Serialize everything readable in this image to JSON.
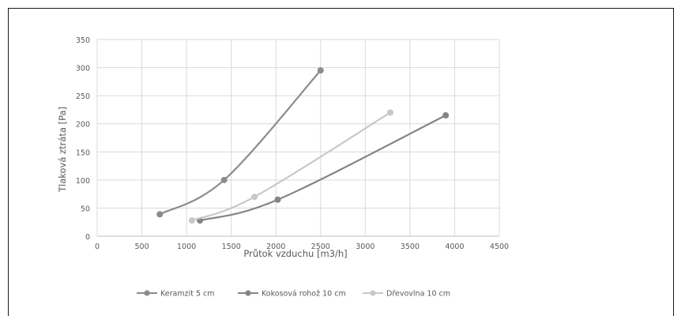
{
  "chart_data": {
    "type": "line",
    "title": "",
    "xlabel": "Průtok vzduchu [m3/h]",
    "ylabel": "Tlaková ztráta [Pa]",
    "xlim": [
      0,
      4500
    ],
    "ylim": [
      0,
      350
    ],
    "xticks": [
      0,
      500,
      1000,
      1500,
      2000,
      2500,
      3000,
      3500,
      4000,
      4500
    ],
    "yticks": [
      0,
      50,
      100,
      150,
      200,
      250,
      300,
      350
    ],
    "grid": true,
    "legend_position": "bottom",
    "series": [
      {
        "name": "Keramzit 5 cm",
        "color": "#8c8c8c",
        "points": [
          [
            700,
            39
          ],
          [
            1420,
            100
          ],
          [
            2500,
            295
          ]
        ]
      },
      {
        "name": "Kokosová rohož 10 cm",
        "color": "#858585",
        "points": [
          [
            1150,
            28
          ],
          [
            2020,
            65
          ],
          [
            3900,
            215
          ]
        ]
      },
      {
        "name": "Dřevovlna 10 cm",
        "color": "#c8c8c8",
        "points": [
          [
            1060,
            28
          ],
          [
            1760,
            70
          ],
          [
            3280,
            220
          ]
        ]
      }
    ]
  }
}
